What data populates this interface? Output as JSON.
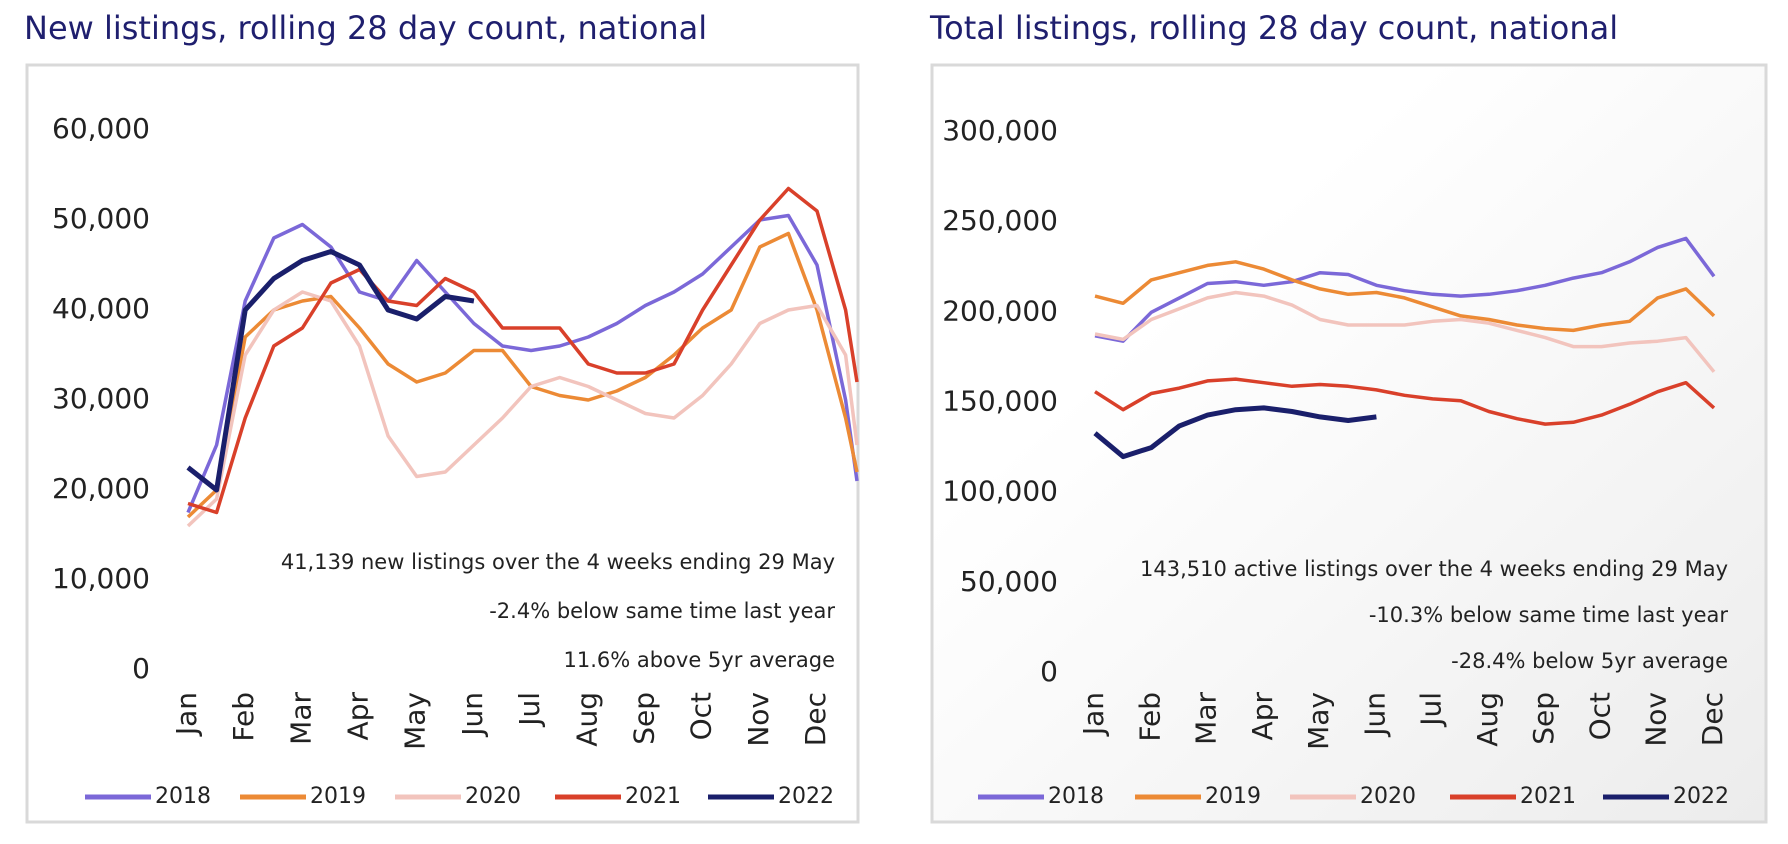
{
  "chart_data": [
    {
      "type": "line",
      "title": "New listings, rolling 28 day count, national",
      "x": [
        0,
        0.5,
        1,
        1.5,
        2,
        2.5,
        3,
        3.5,
        4,
        4.5,
        5,
        5.5,
        6,
        6.5,
        7,
        7.5,
        8,
        8.5,
        9,
        9.5,
        10,
        10.5,
        11,
        11.5,
        11.7
      ],
      "xlim": [
        0,
        11.7
      ],
      "xticks": [
        {
          "value": 0,
          "label": "Jan"
        },
        {
          "value": 1,
          "label": "Feb"
        },
        {
          "value": 2,
          "label": "Mar"
        },
        {
          "value": 3,
          "label": "Apr"
        },
        {
          "value": 4,
          "label": "May"
        },
        {
          "value": 5,
          "label": "Jun"
        },
        {
          "value": 6,
          "label": "Jul"
        },
        {
          "value": 7,
          "label": "Aug"
        },
        {
          "value": 8,
          "label": "Sep"
        },
        {
          "value": 9,
          "label": "Oct"
        },
        {
          "value": 10,
          "label": "Nov"
        },
        {
          "value": 11,
          "label": "Dec"
        }
      ],
      "ylim": [
        0,
        60000
      ],
      "yticks": [
        0,
        {
          "value": 10000,
          "label": "10,000"
        },
        {
          "value": 20000,
          "label": "20,000"
        },
        {
          "value": 30000,
          "label": "30,000"
        },
        {
          "value": 40000,
          "label": "40,000"
        },
        {
          "value": 50000,
          "label": "50,000"
        },
        {
          "value": 60000,
          "label": "60,000"
        }
      ],
      "series": [
        {
          "name": "2018",
          "color": "#7b68d8",
          "values": [
            17500,
            25000,
            41000,
            48000,
            49500,
            47000,
            42000,
            41000,
            45500,
            42000,
            38500,
            36000,
            35500,
            36000,
            37000,
            38500,
            40500,
            42000,
            44000,
            47000,
            50000,
            50500,
            45000,
            30000,
            21000
          ]
        },
        {
          "name": "2019",
          "color": "#ec8a35",
          "values": [
            17000,
            20000,
            37000,
            40000,
            41000,
            41500,
            38000,
            34000,
            32000,
            33000,
            35500,
            35500,
            31500,
            30500,
            30000,
            31000,
            32500,
            35000,
            38000,
            40000,
            47000,
            48500,
            40000,
            28000,
            22000
          ]
        },
        {
          "name": "2020",
          "color": "#f2c4bd",
          "values": [
            16000,
            19000,
            35000,
            40000,
            42000,
            41000,
            36000,
            26000,
            21500,
            22000,
            25000,
            28000,
            31500,
            32500,
            31500,
            30000,
            28500,
            28000,
            30500,
            34000,
            38500,
            40000,
            40500,
            35000,
            25000
          ]
        },
        {
          "name": "2021",
          "color": "#d9402a",
          "values": [
            18500,
            17500,
            28000,
            36000,
            38000,
            43000,
            44500,
            41000,
            40500,
            43500,
            42000,
            38000,
            38000,
            38000,
            34000,
            33000,
            33000,
            34000,
            40000,
            45000,
            50000,
            53500,
            51000,
            40000,
            32000
          ]
        },
        {
          "name": "2022",
          "color": "#1a1f6b",
          "values": [
            22500,
            20000,
            40000,
            43500,
            45500,
            46500,
            45000,
            40000,
            39000,
            41500,
            41000,
            null,
            null,
            null,
            null,
            null,
            null,
            null,
            null,
            null,
            null,
            null,
            null,
            null,
            null
          ]
        }
      ],
      "annotations": [
        "41,139 new listings over the 4 weeks ending 29 May",
        "-2.4% below same time last year",
        "11.6% above 5yr average"
      ]
    },
    {
      "type": "line",
      "title": "Total listings, rolling 28 day count, national",
      "x": [
        0,
        0.5,
        1,
        1.5,
        2,
        2.5,
        3,
        3.5,
        4,
        4.5,
        5,
        5.5,
        6,
        6.5,
        7,
        7.5,
        8,
        8.5,
        9,
        9.5,
        10,
        10.5,
        11
      ],
      "xlim": [
        0,
        11
      ],
      "xticks": [
        {
          "value": 0,
          "label": "Jan"
        },
        {
          "value": 1,
          "label": "Feb"
        },
        {
          "value": 2,
          "label": "Mar"
        },
        {
          "value": 3,
          "label": "Apr"
        },
        {
          "value": 4,
          "label": "May"
        },
        {
          "value": 5,
          "label": "Jun"
        },
        {
          "value": 6,
          "label": "Jul"
        },
        {
          "value": 7,
          "label": "Aug"
        },
        {
          "value": 8,
          "label": "Sep"
        },
        {
          "value": 9,
          "label": "Oct"
        },
        {
          "value": 10,
          "label": "Nov"
        },
        {
          "value": 11,
          "label": "Dec"
        }
      ],
      "ylim": [
        0,
        300000
      ],
      "yticks": [
        0,
        {
          "value": 50000,
          "label": "50,000"
        },
        {
          "value": 100000,
          "label": "100,000"
        },
        {
          "value": 150000,
          "label": "150,000"
        },
        {
          "value": 200000,
          "label": "200,000"
        },
        {
          "value": 250000,
          "label": "250,000"
        },
        {
          "value": 300000,
          "label": "300,000"
        }
      ],
      "series": [
        {
          "name": "2018",
          "color": "#7b68d8",
          "values": [
            187000,
            184000,
            200000,
            208000,
            216000,
            217000,
            215000,
            217000,
            222000,
            221000,
            215000,
            212000,
            210000,
            209000,
            210000,
            212000,
            215000,
            219000,
            222000,
            228000,
            236000,
            241000,
            220000
          ]
        },
        {
          "name": "2019",
          "color": "#ec8a35",
          "values": [
            209000,
            205000,
            218000,
            222000,
            226000,
            228000,
            224000,
            218000,
            213000,
            210000,
            211000,
            208000,
            203000,
            198000,
            196000,
            193000,
            191000,
            190000,
            193000,
            195000,
            208000,
            213000,
            198000
          ]
        },
        {
          "name": "2020",
          "color": "#f2c4bd",
          "values": [
            188000,
            185000,
            196000,
            202000,
            208000,
            211000,
            209000,
            204000,
            196000,
            193000,
            193000,
            193000,
            195000,
            196000,
            194000,
            190000,
            186000,
            181000,
            181000,
            183000,
            184000,
            186000,
            167000
          ]
        },
        {
          "name": "2021",
          "color": "#d9402a",
          "values": [
            156000,
            146000,
            155000,
            158000,
            162000,
            163000,
            161000,
            159000,
            160000,
            159000,
            157000,
            154000,
            152000,
            151000,
            145000,
            141000,
            138000,
            139000,
            143000,
            149000,
            156000,
            161000,
            147000
          ]
        },
        {
          "name": "2022",
          "color": "#1a1f6b",
          "values": [
            133000,
            120000,
            125000,
            137000,
            143000,
            146000,
            147000,
            145000,
            142000,
            140000,
            142000,
            null,
            null,
            null,
            null,
            null,
            null,
            null,
            null,
            null,
            null,
            null,
            null
          ]
        }
      ],
      "annotations": [
        "143,510 active listings over the 4 weeks ending 29 May",
        "-10.3% below same time last year",
        "-28.4% below 5yr average"
      ]
    }
  ]
}
